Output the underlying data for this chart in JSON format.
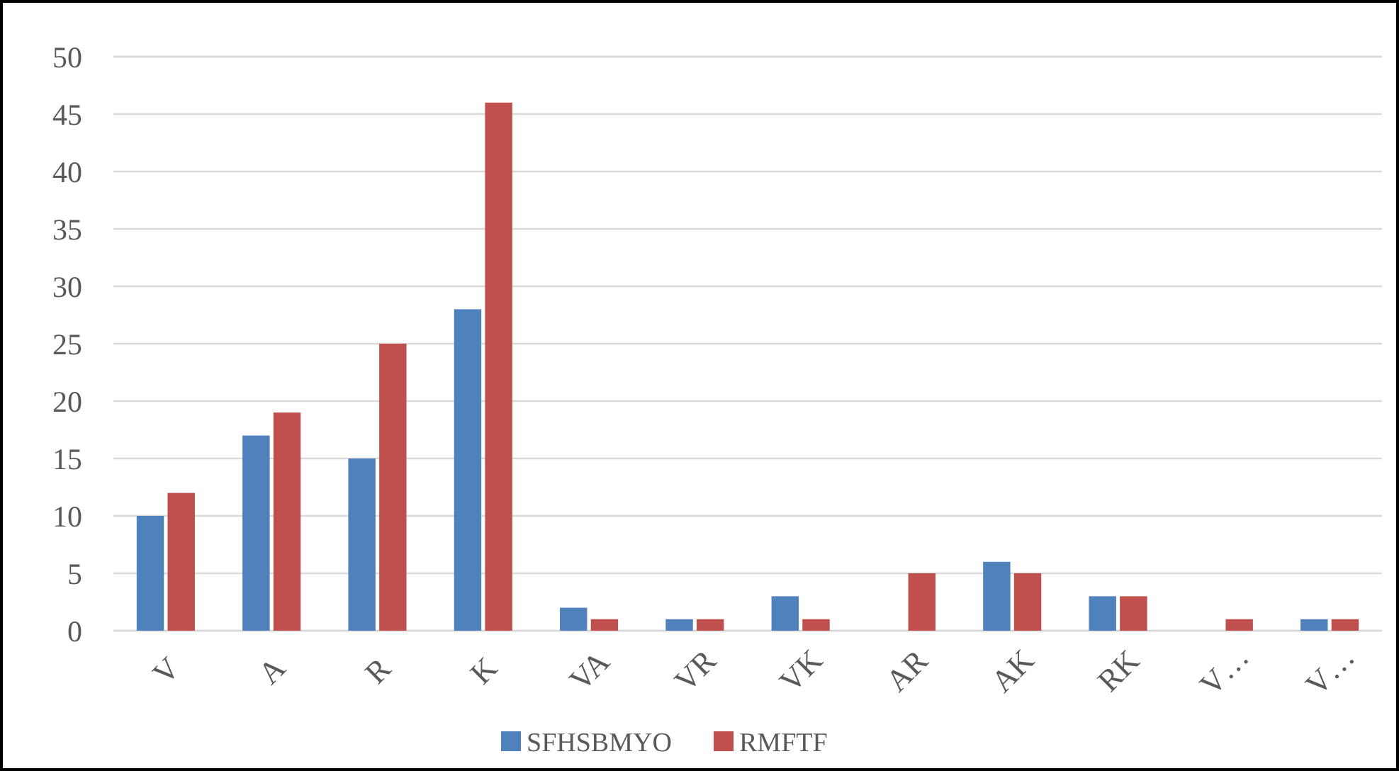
{
  "chart_data": {
    "type": "bar",
    "categories": [
      "V",
      "A",
      "R",
      "K",
      "VA",
      "VR",
      "VK",
      "AR",
      "AK",
      "RK",
      "V…",
      "V…"
    ],
    "series": [
      {
        "name": "SFHSBMYO",
        "color": "#4f81bd",
        "values": [
          10,
          17,
          15,
          28,
          2,
          1,
          3,
          0,
          6,
          3,
          0,
          1
        ]
      },
      {
        "name": "RMFTF",
        "color": "#c0504d",
        "values": [
          12,
          19,
          25,
          46,
          1,
          1,
          1,
          5,
          5,
          3,
          1,
          1
        ]
      }
    ],
    "ylim": [
      0,
      50
    ],
    "yticks": [
      0,
      5,
      10,
      15,
      20,
      25,
      30,
      35,
      40,
      45,
      50
    ],
    "grid": "y",
    "legend": "bottom"
  }
}
